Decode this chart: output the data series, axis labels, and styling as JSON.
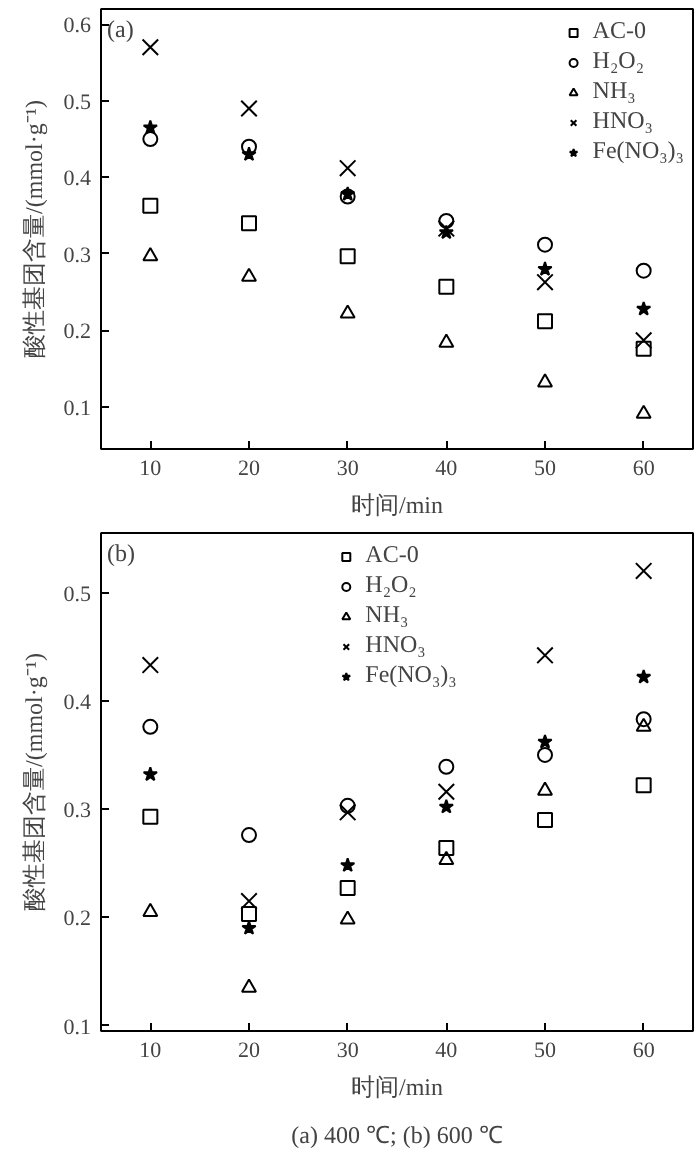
{
  "chart_data": [
    {
      "type": "scatter",
      "annotations": [
        "(a)"
      ],
      "xlabel": "时间/min",
      "ylabel": "酸性基团含量/(mmol·g⁻¹)",
      "x": [
        10,
        20,
        30,
        40,
        50,
        60
      ],
      "xlim": [
        5,
        65
      ],
      "xticks": [
        10,
        20,
        30,
        40,
        50,
        60
      ],
      "ylim": [
        0.045,
        0.62
      ],
      "yticks": [
        0.1,
        0.2,
        0.3,
        0.4,
        0.5,
        0.6
      ],
      "grid": false,
      "legend": "top right",
      "series": [
        {
          "name": "AC-0",
          "color": "#000000",
          "marker": "square",
          "values": [
            0.363,
            0.34,
            0.297,
            0.257,
            0.212,
            0.176
          ]
        },
        {
          "name": "H₂O₂",
          "color": "#000000",
          "marker": "circle",
          "values": [
            0.45,
            0.44,
            0.375,
            0.343,
            0.312,
            0.278
          ]
        },
        {
          "name": "NH₃",
          "color": "#000000",
          "marker": "triangle",
          "values": [
            0.297,
            0.27,
            0.222,
            0.184,
            0.132,
            0.091
          ]
        },
        {
          "name": "HNO₃",
          "color": "#000000",
          "marker": "cross",
          "values": [
            0.57,
            0.49,
            0.412,
            0.333,
            0.263,
            0.187
          ]
        },
        {
          "name": "Fe(NO₃)₃",
          "color": "#000000",
          "marker": "star",
          "values": [
            0.465,
            0.43,
            0.378,
            0.328,
            0.28,
            0.228
          ]
        }
      ]
    },
    {
      "type": "scatter",
      "annotations": [
        "(b)",
        "(a) 400 ℃; (b) 600 ℃"
      ],
      "xlabel": "时间/min",
      "ylabel": "酸性基团含量/(mmol·g⁻¹)",
      "x": [
        10,
        20,
        30,
        40,
        50,
        60
      ],
      "xlim": [
        5,
        65
      ],
      "xticks": [
        10,
        20,
        30,
        40,
        50,
        60
      ],
      "ylim": [
        0.095,
        0.555
      ],
      "yticks": [
        0.1,
        0.2,
        0.3,
        0.4,
        0.5
      ],
      "grid": false,
      "legend": "top",
      "series": [
        {
          "name": "AC-0",
          "color": "#000000",
          "marker": "square",
          "values": [
            0.293,
            0.203,
            0.227,
            0.264,
            0.29,
            0.322
          ]
        },
        {
          "name": "H₂O₂",
          "color": "#000000",
          "marker": "circle",
          "values": [
            0.376,
            0.276,
            0.303,
            0.339,
            0.35,
            0.383
          ]
        },
        {
          "name": "NH₃",
          "color": "#000000",
          "marker": "triangle",
          "values": [
            0.205,
            0.135,
            0.198,
            0.253,
            0.317,
            0.376
          ]
        },
        {
          "name": "HNO₃",
          "color": "#000000",
          "marker": "cross",
          "values": [
            0.433,
            0.215,
            0.297,
            0.316,
            0.442,
            0.52
          ]
        },
        {
          "name": "Fe(NO₃)₃",
          "color": "#000000",
          "marker": "star",
          "values": [
            0.332,
            0.19,
            0.248,
            0.302,
            0.362,
            0.422
          ]
        }
      ]
    }
  ]
}
